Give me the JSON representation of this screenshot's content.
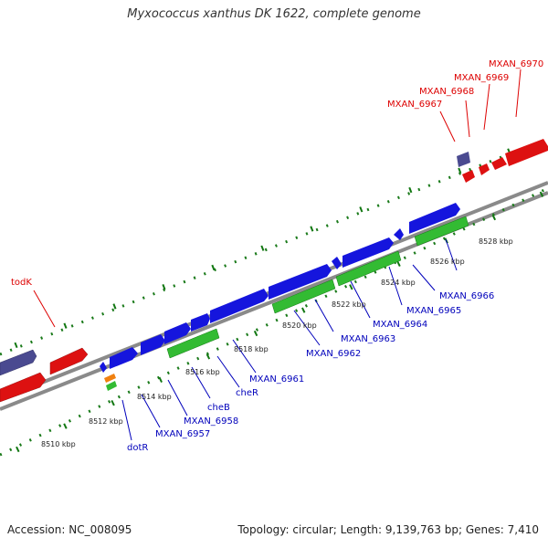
{
  "title": "Myxococcus xanthus DK 1622, complete genome",
  "footer": {
    "accession": "Accession: NC_008095",
    "stats": "Topology: circular; Length: 9,139,763 bp; Genes: 7,410"
  },
  "colors": {
    "forward_cds": "#1515dd",
    "reverse_cds_bottom": "#22aa22",
    "red_genes": "#e01010",
    "purple_genes": "#4a4a90",
    "orange_gene": "#f08010",
    "backbone": "#808080",
    "tick": "#117711",
    "red_label": "#dd0000",
    "blue_label": "#0000bb"
  },
  "scale_labels": [
    "8510 kbp",
    "8512 kbp",
    "8514 kbp",
    "8516 kbp",
    "8518 kbp",
    "8520 kbp",
    "8522 kbp",
    "8524 kbp",
    "8526 kbp",
    "8528 kbp"
  ],
  "upper_labels": [
    "todK",
    "MXAN_6967",
    "MXAN_6968",
    "MXAN_6969",
    "MXAN_6970"
  ],
  "lower_labels": [
    "dotR",
    "MXAN_6957",
    "MXAN_6958",
    "cheB",
    "cheR",
    "MXAN_6961",
    "MXAN_6962",
    "MXAN_6963",
    "MXAN_6964",
    "MXAN_6965",
    "MXAN_6966"
  ]
}
